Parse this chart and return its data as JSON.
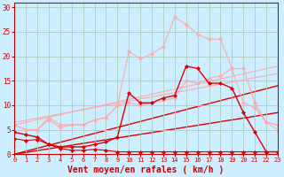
{
  "background_color": "#cceeff",
  "grid_color": "#aaccbb",
  "xlabel": "Vent moyen/en rafales ( km/h )",
  "xlabel_color": "#cc0000",
  "xlabel_fontsize": 7,
  "tick_color": "#cc0000",
  "ylim": [
    0,
    31
  ],
  "xlim": [
    0,
    23
  ],
  "yticks": [
    0,
    5,
    10,
    15,
    20,
    25,
    30
  ],
  "xticks": [
    0,
    1,
    2,
    3,
    4,
    5,
    6,
    7,
    8,
    9,
    10,
    11,
    12,
    13,
    14,
    15,
    16,
    17,
    18,
    19,
    20,
    21,
    22,
    23
  ],
  "lines": [
    {
      "x": [
        0,
        1,
        2,
        3,
        4,
        5,
        6,
        7,
        8,
        9,
        10,
        11,
        12,
        13,
        14,
        15,
        16,
        17,
        18,
        19,
        20,
        21,
        22,
        23
      ],
      "y": [
        3.2,
        2.8,
        3.0,
        2.0,
        1.2,
        0.8,
        0.8,
        1.0,
        0.8,
        0.5,
        0.5,
        0.5,
        0.5,
        0.5,
        0.5,
        0.5,
        0.5,
        0.5,
        0.5,
        0.5,
        0.5,
        0.5,
        0.5,
        0.5
      ],
      "color": "#dd0000",
      "lw": 0.8,
      "marker": "D",
      "ms": 2.0
    },
    {
      "x": [
        0,
        1,
        2,
        3,
        4,
        5,
        6,
        7,
        8,
        9,
        10,
        11,
        12,
        13,
        14,
        15,
        16,
        17,
        18,
        19,
        20,
        21,
        22,
        23
      ],
      "y": [
        6.0,
        5.0,
        5.0,
        7.5,
        6.0,
        6.0,
        6.0,
        7.0,
        7.5,
        10.0,
        10.5,
        10.0,
        10.5,
        11.0,
        11.5,
        15.0,
        14.5,
        15.5,
        16.0,
        17.5,
        17.5,
        10.5,
        6.5,
        6.0
      ],
      "color": "#ffaaaa",
      "lw": 0.8,
      "marker": "D",
      "ms": 2.0
    },
    {
      "x": [
        0,
        1,
        2,
        3,
        4,
        5,
        6,
        7,
        8,
        9,
        10,
        11,
        12,
        13,
        14,
        15,
        16,
        17,
        18,
        19,
        20,
        21,
        22,
        23
      ],
      "y": [
        4.5,
        4.0,
        3.5,
        2.0,
        1.5,
        1.5,
        1.5,
        2.0,
        2.5,
        3.5,
        12.5,
        10.5,
        10.5,
        11.5,
        12.0,
        18.0,
        17.5,
        14.5,
        14.5,
        13.5,
        8.5,
        4.5,
        0.5,
        0.5
      ],
      "color": "#dd0000",
      "lw": 1.0,
      "marker": "D",
      "ms": 2.0
    },
    {
      "x": [
        0,
        1,
        2,
        3,
        4,
        5,
        6,
        7,
        8,
        9,
        10,
        11,
        12,
        13,
        14,
        15,
        16,
        17,
        18,
        19,
        20,
        21,
        22,
        23
      ],
      "y": [
        6.0,
        5.0,
        5.0,
        7.0,
        5.5,
        6.0,
        6.0,
        7.0,
        7.5,
        10.0,
        21.0,
        19.5,
        20.5,
        22.0,
        28.0,
        26.5,
        24.5,
        23.5,
        23.5,
        17.5,
        10.5,
        9.5,
        6.5,
        5.0
      ],
      "color": "#ffaaaa",
      "lw": 0.8,
      "marker": "D",
      "ms": 2.0
    },
    {
      "x": [
        0,
        23
      ],
      "y": [
        0.0,
        8.5
      ],
      "color": "#dd0000",
      "lw": 1.0,
      "marker": null,
      "ms": 0
    },
    {
      "x": [
        0,
        23
      ],
      "y": [
        0.0,
        14.0
      ],
      "color": "#dd0000",
      "lw": 1.0,
      "marker": null,
      "ms": 0
    },
    {
      "x": [
        0,
        23
      ],
      "y": [
        6.0,
        18.0
      ],
      "color": "#ffaaaa",
      "lw": 0.8,
      "marker": null,
      "ms": 0
    },
    {
      "x": [
        0,
        23
      ],
      "y": [
        6.5,
        16.5
      ],
      "color": "#ffaaaa",
      "lw": 0.8,
      "marker": null,
      "ms": 0
    }
  ]
}
